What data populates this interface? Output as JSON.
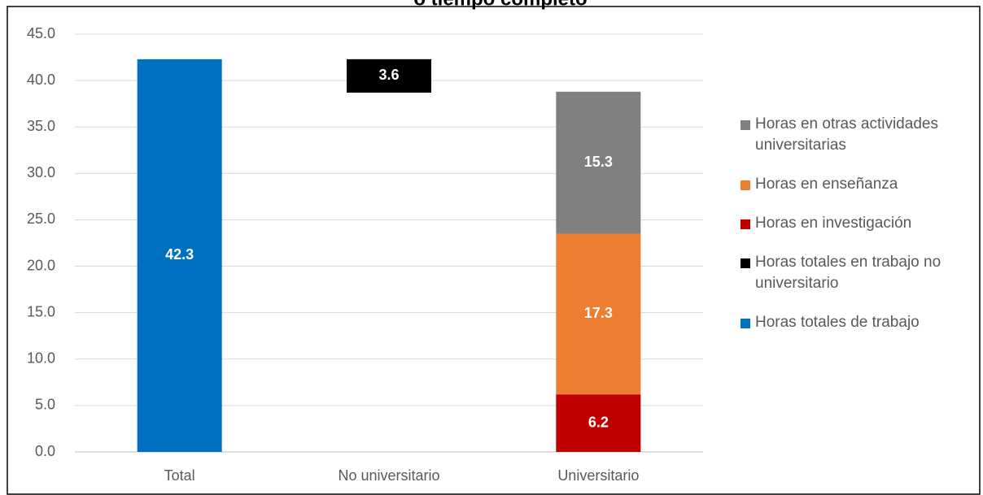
{
  "chart_data": {
    "type": "waterfall",
    "title": "o tiempo completo",
    "categories": [
      "Total",
      "No universitario",
      "Universitario"
    ],
    "series": [
      {
        "name": "Horas totales de trabajo",
        "color": "#0070c0",
        "values": [
          42.3,
          null,
          null
        ]
      },
      {
        "name": "Horas totales en trabajo no universitario",
        "color": "#000000",
        "values": [
          null,
          3.6,
          null
        ]
      },
      {
        "name": "Horas en investigación",
        "color": "#c00000",
        "values": [
          null,
          null,
          6.2
        ]
      },
      {
        "name": "Horas en enseñanza",
        "color": "#ed7d31",
        "values": [
          null,
          null,
          17.3
        ]
      },
      {
        "name": "Horas en otras actividades universitarias",
        "color": "#808080",
        "values": [
          null,
          null,
          15.3
        ]
      }
    ],
    "ylim": [
      0,
      45
    ],
    "yticks": [
      {
        "value": 0,
        "label": "0.0"
      },
      {
        "value": 5,
        "label": "5.0"
      },
      {
        "value": 10,
        "label": "10.0"
      },
      {
        "value": 15,
        "label": "15.0"
      },
      {
        "value": 20,
        "label": "20.0"
      },
      {
        "value": 25,
        "label": "25.0"
      },
      {
        "value": 30,
        "label": "30.0"
      },
      {
        "value": 35,
        "label": "35.0"
      },
      {
        "value": 40,
        "label": "40.0"
      },
      {
        "value": 45,
        "label": "45.0"
      }
    ],
    "grid": true,
    "legend": "right"
  }
}
